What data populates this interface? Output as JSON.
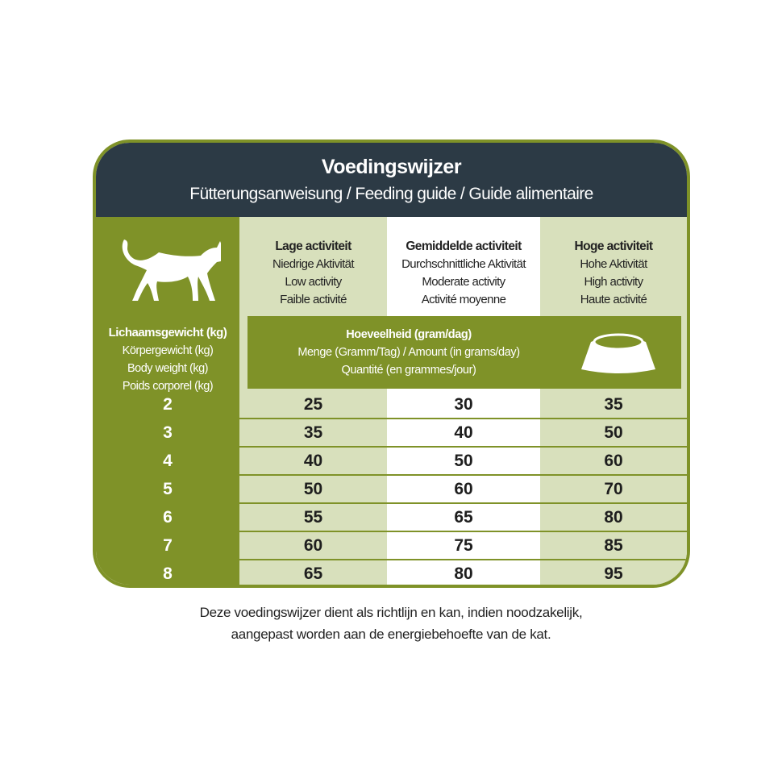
{
  "header": {
    "title": "Voedingswijzer",
    "subtitle": "Fütterungsanweisung / Feeding guide / Guide alimentaire"
  },
  "weight_label": [
    "Lichaamsgewicht (kg)",
    "Körpergewicht (kg)",
    "Body weight (kg)",
    "Poids corporel (kg)"
  ],
  "columns": [
    {
      "title": "Lage activiteit",
      "lines": [
        "Niedrige Aktivität",
        "Low activity",
        "Faible activité"
      ]
    },
    {
      "title": "Gemiddelde activiteit",
      "lines": [
        "Durchschnittliche Aktivität",
        "Moderate activity",
        "Activité moyenne"
      ]
    },
    {
      "title": "Hoge activiteit",
      "lines": [
        "Hohe Aktivität",
        "High activity",
        "Haute activité"
      ]
    }
  ],
  "amount_label": [
    "Hoeveelheid (gram/dag)",
    "Menge (Gramm/Tag) / Amount (in grams/day)",
    "Quantité (en grammes/jour)"
  ],
  "icons": {
    "cat": "cat-icon",
    "bowl": "bowl-icon"
  },
  "colors": {
    "green": "#7f9228",
    "dark": "#2c3a45",
    "light_green": "#d8e0bc"
  },
  "rows": [
    {
      "weight": "2",
      "values": [
        "25",
        "30",
        "35"
      ]
    },
    {
      "weight": "3",
      "values": [
        "35",
        "40",
        "50"
      ]
    },
    {
      "weight": "4",
      "values": [
        "40",
        "50",
        "60"
      ]
    },
    {
      "weight": "5",
      "values": [
        "50",
        "60",
        "70"
      ]
    },
    {
      "weight": "6",
      "values": [
        "55",
        "65",
        "80"
      ]
    },
    {
      "weight": "7",
      "values": [
        "60",
        "75",
        "85"
      ]
    },
    {
      "weight": "8",
      "values": [
        "65",
        "80",
        "95"
      ]
    }
  ],
  "footnote": [
    "Deze voedingswijzer dient als richtlijn en kan, indien noodzakelijk,",
    "aangepast worden aan de energiebehoefte van de kat."
  ]
}
